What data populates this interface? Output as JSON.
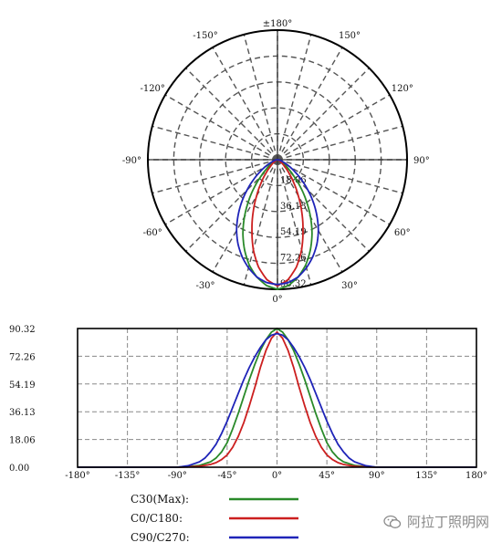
{
  "colors": {
    "c30": "#2a8a2a",
    "c0c180": "#cc1f1f",
    "c90c270": "#1f24b8",
    "grid": "#555555",
    "frame": "#000000"
  },
  "chart_data": [
    {
      "type": "polar",
      "angle_labels": [
        "±180°",
        "150°",
        "120°",
        "90°",
        "60°",
        "30°",
        "0°",
        "-30°",
        "-60°",
        "-90°",
        "-120°",
        "-150°"
      ],
      "radial_labels": [
        "18.06",
        "36.13",
        "54.19",
        "72.26",
        "90.32"
      ],
      "rmax": 90.32,
      "grid": true,
      "series": [
        {
          "name": "C30(Max)",
          "color_key": "c30",
          "angles": [
            0,
            5,
            10,
            15,
            20,
            25,
            30,
            35,
            40,
            45,
            50,
            55,
            60,
            70,
            80,
            90
          ],
          "values": [
            90.32,
            88,
            83,
            76,
            67,
            57,
            46,
            35,
            25,
            16,
            10,
            6,
            3.5,
            1.2,
            0.4,
            0
          ]
        },
        {
          "name": "C0/C180",
          "color_key": "c0c180",
          "angles": [
            0,
            5,
            10,
            15,
            20,
            25,
            30,
            35,
            40,
            45,
            50,
            55,
            60,
            70,
            80,
            90
          ],
          "values": [
            88,
            84,
            76,
            65,
            52,
            40,
            29,
            20,
            13,
            8,
            5,
            3,
            1.8,
            0.6,
            0.2,
            0
          ]
        },
        {
          "name": "C90/C270",
          "color_key": "c90c270",
          "angles": [
            0,
            5,
            10,
            15,
            20,
            25,
            30,
            35,
            40,
            45,
            50,
            55,
            60,
            65,
            70,
            80,
            90
          ],
          "values": [
            87,
            86,
            83,
            78,
            72,
            65,
            57,
            48,
            39,
            30,
            22,
            15,
            10,
            6,
            3.5,
            1,
            0
          ]
        }
      ]
    },
    {
      "type": "line",
      "x_ticks": [
        "-180°",
        "-135°",
        "-90°",
        "-45°",
        "0°",
        "45°",
        "90°",
        "135°",
        "180°"
      ],
      "y_ticks": [
        "0.00",
        "18.06",
        "36.13",
        "54.19",
        "72.26",
        "90.32"
      ],
      "xlim": [
        -180,
        180
      ],
      "ylim": [
        0,
        90.32
      ],
      "grid": true,
      "legend_position": "bottom"
    }
  ],
  "legend": [
    {
      "label": "C30(Max):",
      "color_key": "c30"
    },
    {
      "label": "C0/C180:",
      "color_key": "c0c180"
    },
    {
      "label": "C90/C270:",
      "color_key": "c90c270"
    }
  ],
  "watermark": {
    "text": "阿拉丁照明网",
    "icon": "wechat-icon"
  }
}
